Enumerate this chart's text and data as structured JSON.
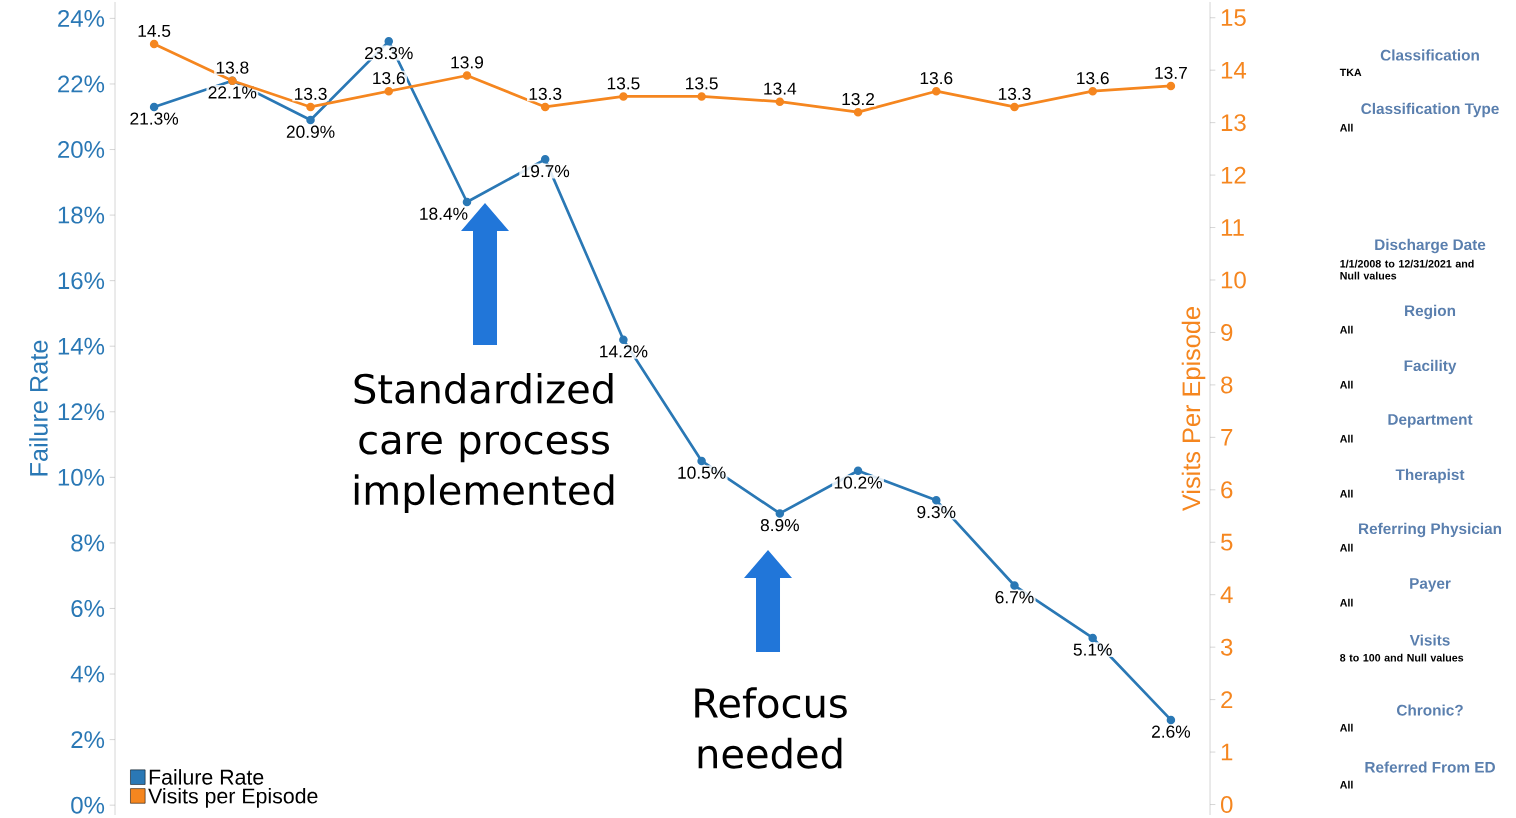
{
  "chart_data": {
    "type": "line",
    "categories": [
      null,
      null,
      null,
      null,
      null,
      null,
      null,
      null,
      null,
      null,
      null,
      null,
      null,
      null
    ],
    "series": [
      {
        "name": "Failure Rate",
        "color": "#2a78b5",
        "values": [
          21.3,
          22.1,
          20.9,
          23.3,
          18.4,
          19.7,
          14.2,
          10.5,
          8.9,
          10.2,
          9.3,
          6.7,
          5.1,
          2.6
        ],
        "value_labels": [
          "21.3%",
          "22.1%",
          "20.9%",
          "23.3%",
          "18.4%",
          "19.7%",
          "14.2%",
          "10.5%",
          "8.9%",
          "10.2%",
          "9.3%",
          "6.7%",
          "5.1%",
          "2.6%"
        ]
      },
      {
        "name": "Visits per Episode",
        "color": "#f5861f",
        "axis": "y2",
        "values": [
          14.5,
          13.8,
          13.3,
          13.6,
          13.9,
          13.3,
          13.5,
          13.5,
          13.4,
          13.2,
          13.6,
          13.3,
          13.6,
          13.7
        ],
        "value_labels": [
          "14.5",
          "13.8",
          "13.3",
          "13.6",
          "13.9",
          "13.3",
          "13.5",
          "13.5",
          "13.4",
          "13.2",
          "13.6",
          "13.3",
          "13.6",
          "13.7"
        ]
      }
    ],
    "ylabel": "Failure Rate",
    "y2label": "Visits Per Episode",
    "ylim": [
      -0.3,
      24.5
    ],
    "yticks": [
      {
        "value": 0,
        "label": "0%"
      },
      {
        "value": 2,
        "label": "2%"
      },
      {
        "value": 4,
        "label": "4%"
      },
      {
        "value": 6,
        "label": "6%"
      },
      {
        "value": 8,
        "label": "8%"
      },
      {
        "value": 10,
        "label": "10%"
      },
      {
        "value": 12,
        "label": "12%"
      },
      {
        "value": 14,
        "label": "14%"
      },
      {
        "value": 16,
        "label": "16%"
      },
      {
        "value": 18,
        "label": "18%"
      },
      {
        "value": 20,
        "label": "20%"
      },
      {
        "value": 22,
        "label": "22%"
      },
      {
        "value": 24,
        "label": "24%"
      }
    ],
    "y2lim": [
      -0.2,
      15.3
    ],
    "y2ticks": [
      0,
      1,
      2,
      3,
      4,
      5,
      6,
      7,
      8,
      9,
      10,
      11,
      12,
      13,
      14,
      15
    ],
    "marker": "circle",
    "line_style": "solid",
    "legend": "bottom left",
    "annotations": [
      "Classification",
      "TKA",
      "Classification Type",
      "All",
      "Discharge Date",
      "1/1/2008 to 12/31/2021 and Null values",
      "Region",
      "All",
      "Facility",
      "All",
      "Department",
      "All",
      "Therapist",
      "All",
      "Referring Physician",
      "All",
      "Payer",
      "All",
      "Visits",
      "8 to 100 and Null values",
      "Chronic?",
      "All",
      "Referred From ED",
      "All",
      "Standardized care process implemented",
      "Refocus needed"
    ]
  }
}
